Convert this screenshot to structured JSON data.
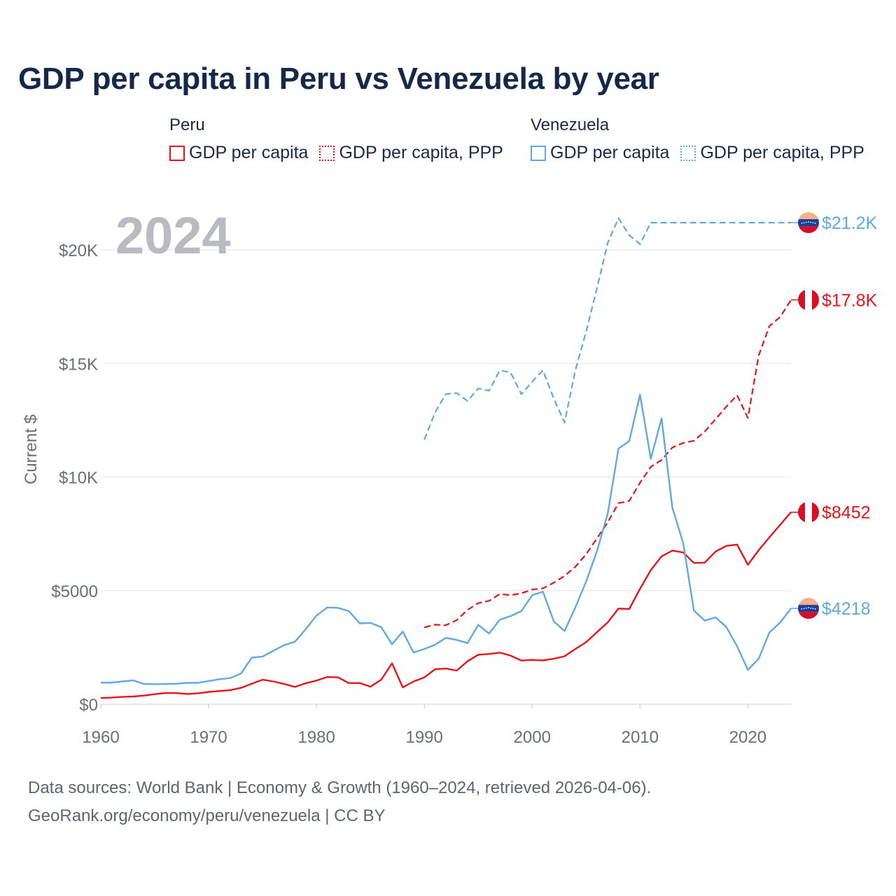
{
  "title": "GDP per capita in Peru vs Venezuela by year",
  "legend": {
    "groups": [
      {
        "name": "Peru",
        "items": [
          {
            "label": "GDP per capita",
            "color": "#e8141a",
            "style": "solid"
          },
          {
            "label": "GDP per capita, PPP",
            "color": "#e8141a",
            "style": "dotted"
          }
        ]
      },
      {
        "name": "Venezuela",
        "items": [
          {
            "label": "GDP per capita",
            "color": "#62a8e0",
            "style": "solid"
          },
          {
            "label": "GDP per capita, PPP",
            "color": "#62a8e0",
            "style": "dotted"
          }
        ]
      }
    ]
  },
  "year_label": "2024",
  "footer": {
    "line1": "Data sources: World Bank | Economy & Growth (1960–2024, retrieved 2026-04-06).",
    "line2": "GeoRank.org/economy/peru/venezuela | CC BY"
  },
  "chart_data": {
    "type": "line",
    "title": "GDP per capita in Peru vs Venezuela by year",
    "xlabel": "",
    "ylabel": "Current $",
    "xlim": [
      1960,
      2024
    ],
    "ylim": [
      0,
      22000
    ],
    "xticks": [
      1960,
      1970,
      1980,
      1990,
      2000,
      2010,
      2020
    ],
    "xtick_labels": [
      "1960",
      "1970",
      "1980",
      "1990",
      "2000",
      "2010",
      "2020"
    ],
    "yticks": [
      0,
      5000,
      10000,
      15000,
      20000
    ],
    "ytick_labels": [
      "$0",
      "$5000",
      "$10K",
      "$15K",
      "$20K"
    ],
    "grid": true,
    "series": [
      {
        "name": "Venezuela GDP per capita, PPP",
        "country": "Venezuela",
        "dash": true,
        "color": "#62a8e0",
        "end_label": "$21.2K",
        "x": [
          1990,
          1991,
          1992,
          1993,
          1994,
          1995,
          1996,
          1997,
          1998,
          1999,
          2000,
          2001,
          2002,
          2003,
          2004,
          2005,
          2006,
          2007,
          2008,
          2009,
          2010,
          2011,
          2012,
          2013,
          2014,
          2015,
          2016,
          2017,
          2018,
          2019,
          2020,
          2021,
          2022,
          2023,
          2024
        ],
        "values": [
          11650,
          12850,
          13650,
          13700,
          13350,
          13900,
          13800,
          14700,
          14600,
          13650,
          14200,
          14700,
          13450,
          12400,
          14700,
          16400,
          18300,
          20300,
          21400,
          20650,
          20250,
          21200,
          21200,
          21200,
          21200,
          21200,
          21200,
          21200,
          21200,
          21200,
          21200,
          21200,
          21200,
          21200,
          21200
        ]
      },
      {
        "name": "Peru GDP per capita, PPP",
        "country": "Peru",
        "dash": true,
        "color": "#e8141a",
        "end_label": "$17.8K",
        "x": [
          1990,
          1991,
          1992,
          1993,
          1994,
          1995,
          1996,
          1997,
          1998,
          1999,
          2000,
          2001,
          2002,
          2003,
          2004,
          2005,
          2006,
          2007,
          2008,
          2009,
          2010,
          2011,
          2012,
          2013,
          2014,
          2015,
          2016,
          2017,
          2018,
          2019,
          2020,
          2021,
          2022,
          2023,
          2024
        ],
        "values": [
          3380,
          3500,
          3480,
          3700,
          4150,
          4450,
          4550,
          4850,
          4800,
          4880,
          5050,
          5100,
          5350,
          5650,
          6050,
          6600,
          7300,
          8000,
          8850,
          8950,
          9750,
          10450,
          10750,
          11300,
          11500,
          11600,
          12000,
          12550,
          13100,
          13600,
          12600,
          15350,
          16650,
          17050,
          17800
        ]
      },
      {
        "name": "Peru GDP per capita",
        "country": "Peru",
        "dash": false,
        "color": "#e8141a",
        "end_label": "$8452",
        "x": [
          1960,
          1961,
          1962,
          1963,
          1964,
          1965,
          1966,
          1967,
          1968,
          1969,
          1970,
          1971,
          1972,
          1973,
          1974,
          1975,
          1976,
          1977,
          1978,
          1979,
          1980,
          1981,
          1982,
          1983,
          1984,
          1985,
          1986,
          1987,
          1988,
          1989,
          1990,
          1991,
          1992,
          1993,
          1994,
          1995,
          1996,
          1997,
          1998,
          1999,
          2000,
          2001,
          2002,
          2003,
          2004,
          2005,
          2006,
          2007,
          2008,
          2009,
          2010,
          2011,
          2012,
          2013,
          2014,
          2015,
          2016,
          2017,
          2018,
          2019,
          2020,
          2021,
          2022,
          2023,
          2024
        ],
        "values": [
          270,
          290,
          320,
          340,
          380,
          440,
          490,
          490,
          450,
          480,
          540,
          580,
          620,
          720,
          900,
          1080,
          1000,
          890,
          760,
          920,
          1040,
          1200,
          1180,
          930,
          930,
          770,
          1080,
          1800,
          740,
          1000,
          1180,
          1540,
          1570,
          1480,
          1890,
          2180,
          2210,
          2270,
          2140,
          1920,
          1950,
          1930,
          2000,
          2110,
          2430,
          2730,
          3170,
          3600,
          4210,
          4190,
          5080,
          5900,
          6510,
          6760,
          6680,
          6220,
          6230,
          6720,
          6970,
          7030,
          6140,
          6780,
          7350,
          7900,
          8452
        ]
      },
      {
        "name": "Venezuela GDP per capita",
        "country": "Venezuela",
        "dash": false,
        "color": "#62a8e0",
        "end_label": "$4218",
        "x": [
          1960,
          1961,
          1962,
          1963,
          1964,
          1965,
          1966,
          1967,
          1968,
          1969,
          1970,
          1971,
          1972,
          1973,
          1974,
          1975,
          1976,
          1977,
          1978,
          1979,
          1980,
          1981,
          1982,
          1983,
          1984,
          1985,
          1986,
          1987,
          1988,
          1989,
          1990,
          1991,
          1992,
          1993,
          1994,
          1995,
          1996,
          1997,
          1998,
          1999,
          2000,
          2001,
          2002,
          2003,
          2004,
          2005,
          2006,
          2007,
          2008,
          2009,
          2010,
          2011,
          2012,
          2013,
          2014,
          2015,
          2016,
          2017,
          2018,
          2019,
          2020,
          2021,
          2022,
          2023,
          2024
        ],
        "values": [
          950,
          950,
          1000,
          1050,
          890,
          880,
          890,
          900,
          940,
          940,
          1020,
          1100,
          1150,
          1350,
          2050,
          2100,
          2350,
          2600,
          2750,
          3300,
          3900,
          4260,
          4240,
          4100,
          3560,
          3580,
          3390,
          2640,
          3200,
          2270,
          2430,
          2620,
          2920,
          2830,
          2690,
          3490,
          3110,
          3720,
          3880,
          4100,
          4800,
          4950,
          3650,
          3220,
          4260,
          5400,
          6730,
          8380,
          11250,
          11580,
          13630,
          10800,
          12580,
          8650,
          7100,
          4120,
          3680,
          3820,
          3400,
          2550,
          1510,
          2000,
          3160,
          3600,
          4218
        ]
      }
    ]
  }
}
